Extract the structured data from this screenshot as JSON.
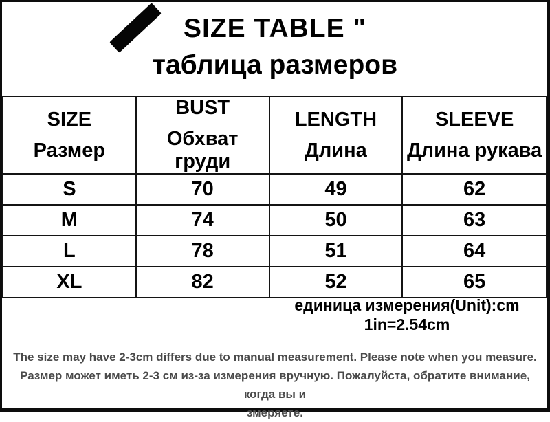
{
  "title": {
    "en": "SIZE TABLE \"",
    "ru": "таблица размеров"
  },
  "table": {
    "headers": [
      {
        "en": "SIZE",
        "ru": "Размер"
      },
      {
        "en": "BUST",
        "ru": "Обхват груди"
      },
      {
        "en": "LENGTH",
        "ru": "Длина"
      },
      {
        "en": "SLEEVE",
        "ru": "Длина рукава"
      }
    ],
    "rows": [
      [
        "S",
        "70",
        "49",
        "62"
      ],
      [
        "M",
        "74",
        "50",
        "63"
      ],
      [
        "L",
        "78",
        "51",
        "64"
      ],
      [
        "XL",
        "82",
        "52",
        "65"
      ]
    ]
  },
  "unit": {
    "line1": "единица измерения(Unit):cm",
    "line2": "1in=2.54cm"
  },
  "footer": {
    "line1": "The size may have 2-3cm differs due to manual measurement. Please note when you measure.",
    "line2": "Размер может иметь 2-3 см из-за измерения вручную. Пожалуйста, обратите внимание, когда вы и",
    "line3": "змеряете."
  },
  "colors": {
    "background": "#ffffff",
    "text": "#000000",
    "footer_text": "#4a4a4a",
    "border": "#141414",
    "stripe": "#050505"
  }
}
